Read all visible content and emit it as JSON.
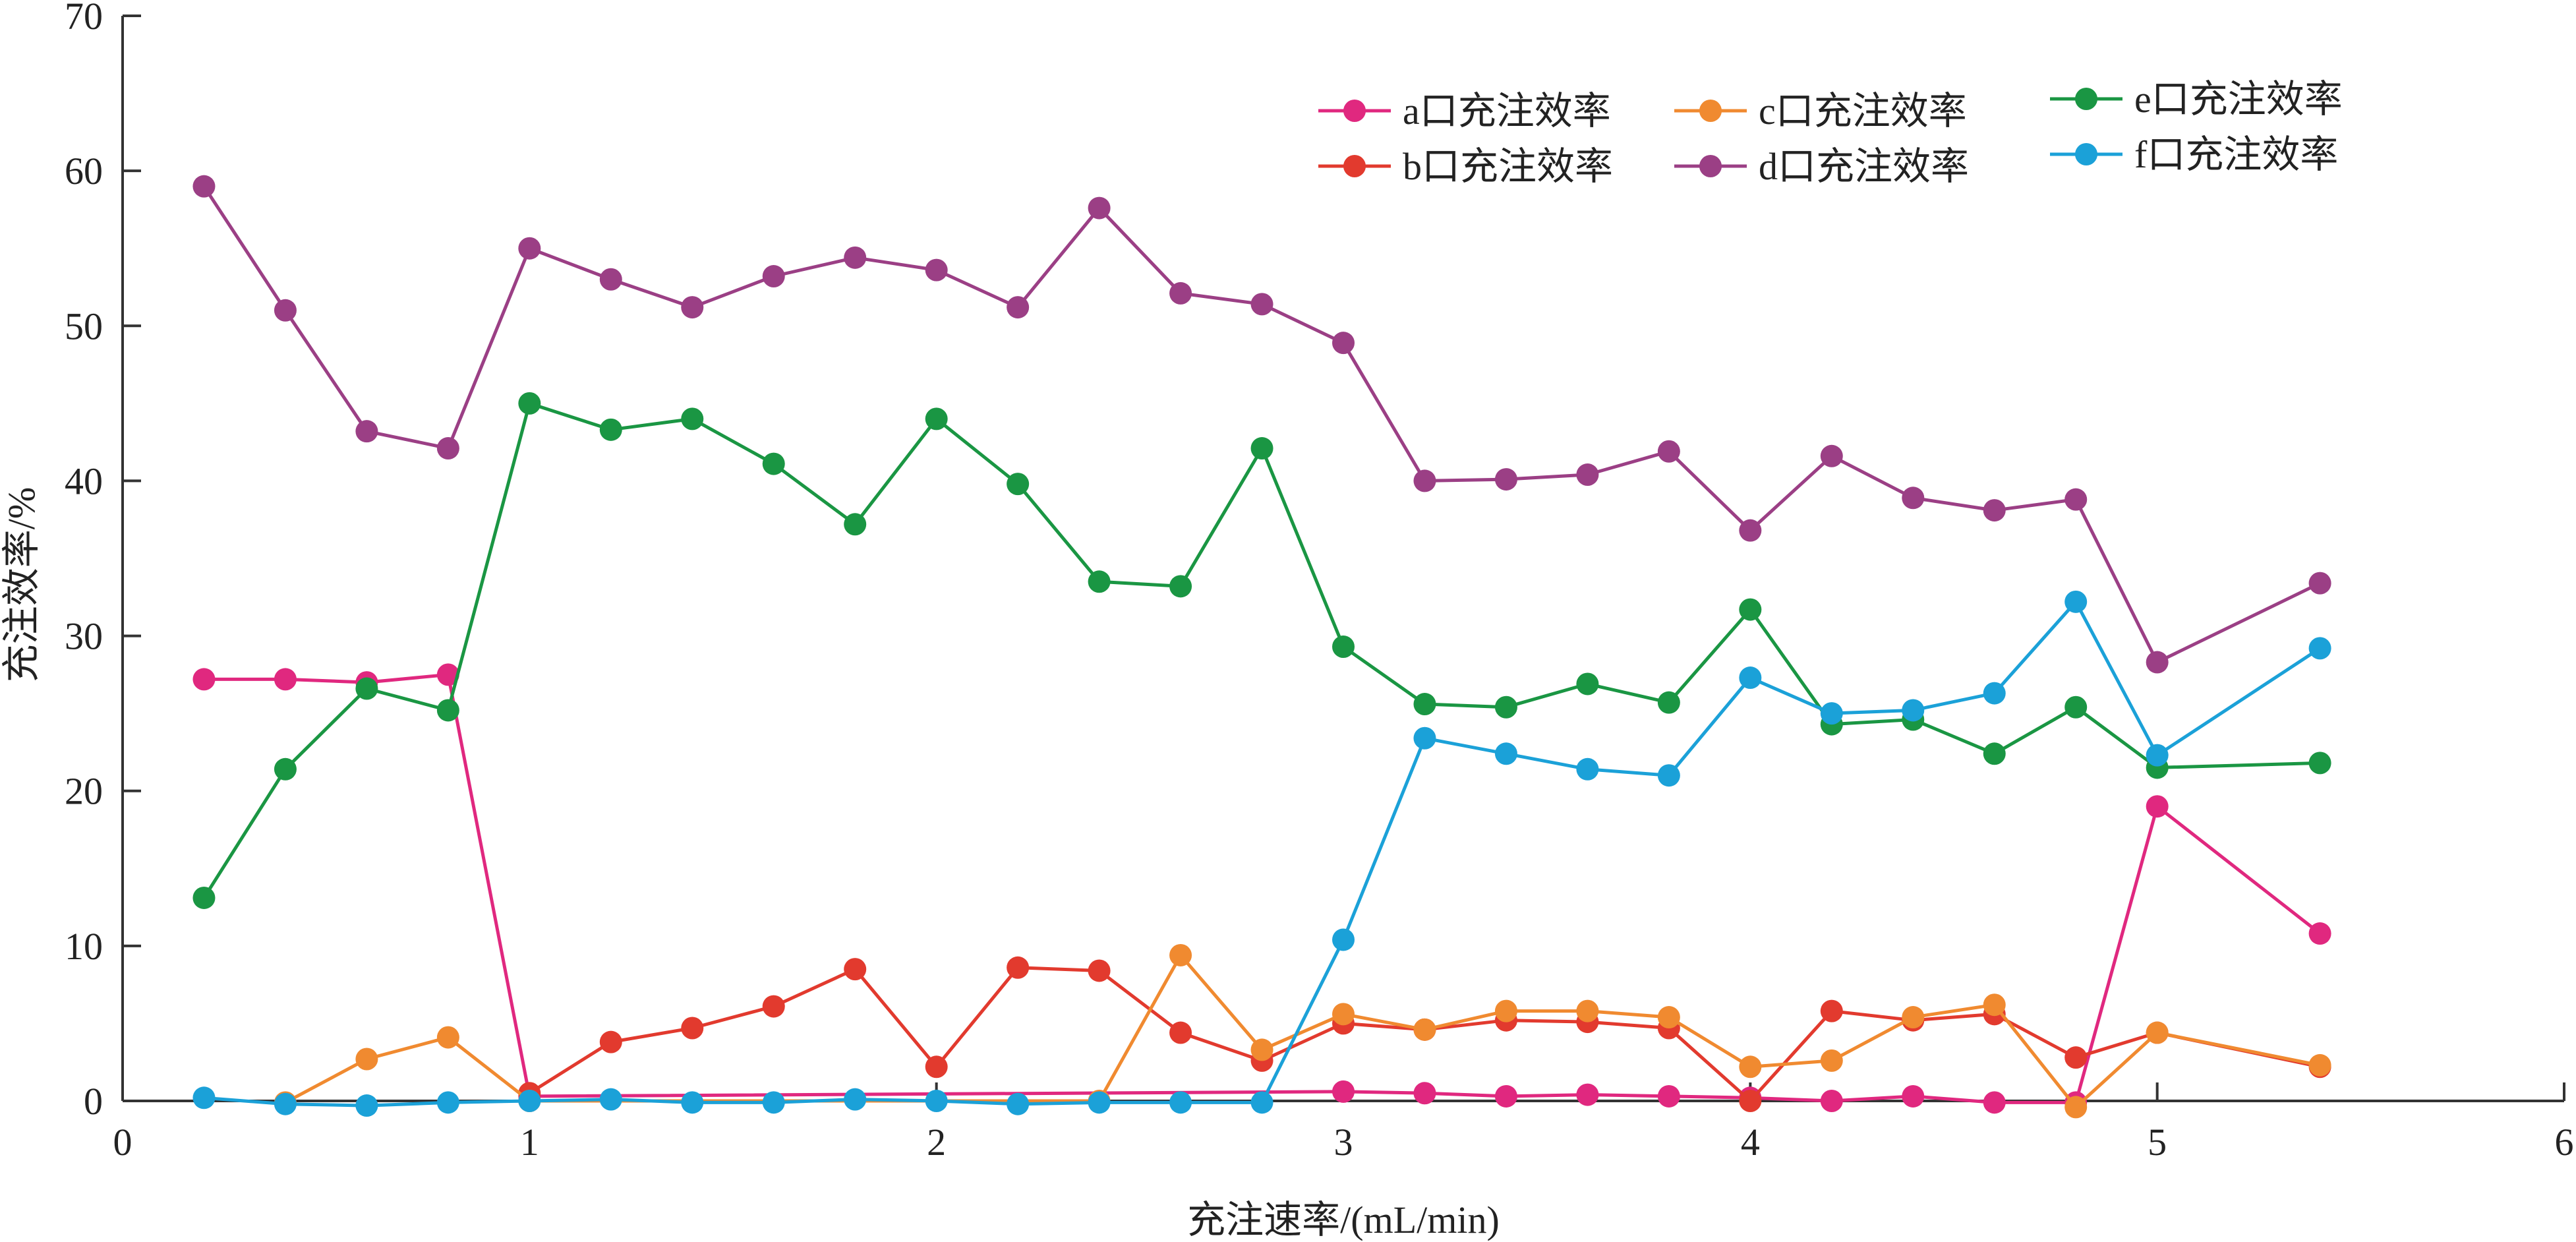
{
  "chart_data": {
    "type": "line",
    "xlabel": "充注速率/(mL/min)",
    "ylabel": "充注效率/%",
    "xlim": [
      0,
      6
    ],
    "ylim": [
      0,
      70
    ],
    "x_ticks": [
      "0",
      "1",
      "2",
      "3",
      "4",
      "5",
      "6"
    ],
    "y_ticks": [
      "0",
      "10",
      "20",
      "30",
      "40",
      "50",
      "60",
      "70"
    ],
    "grid": false,
    "legend_position": "top-right",
    "series": [
      {
        "name": "a口充注效率",
        "color": "#E0287F",
        "points": [
          [
            0.2,
            27.2
          ],
          [
            0.4,
            27.2
          ],
          [
            0.6,
            27.0
          ],
          [
            0.8,
            27.5
          ],
          [
            1.0,
            0.3
          ],
          [
            3.0,
            0.6
          ],
          [
            3.2,
            0.5
          ],
          [
            3.4,
            0.3
          ],
          [
            3.6,
            0.4
          ],
          [
            3.8,
            0.3
          ],
          [
            4.0,
            0.2
          ],
          [
            4.2,
            0.0
          ],
          [
            4.4,
            0.3
          ],
          [
            4.6,
            -0.1
          ],
          [
            4.8,
            -0.1
          ],
          [
            5.0,
            19.0
          ],
          [
            5.4,
            10.8
          ]
        ]
      },
      {
        "name": "b口充注效率",
        "color": "#E23A2E",
        "points": [
          [
            1.0,
            0.5
          ],
          [
            1.2,
            3.8
          ],
          [
            1.4,
            4.7
          ],
          [
            1.6,
            6.1
          ],
          [
            1.8,
            8.5
          ],
          [
            2.0,
            2.2
          ],
          [
            2.2,
            8.6
          ],
          [
            2.4,
            8.4
          ],
          [
            2.6,
            4.4
          ],
          [
            2.8,
            2.6
          ],
          [
            3.0,
            5.0
          ],
          [
            3.2,
            4.6
          ],
          [
            3.4,
            5.2
          ],
          [
            3.6,
            5.1
          ],
          [
            3.8,
            4.7
          ],
          [
            4.0,
            0.0
          ],
          [
            4.2,
            5.8
          ],
          [
            4.4,
            5.2
          ],
          [
            4.6,
            5.6
          ],
          [
            4.8,
            2.8
          ],
          [
            5.0,
            4.4
          ],
          [
            5.4,
            2.2
          ]
        ]
      },
      {
        "name": "c口充注效率",
        "color": "#F08A30",
        "points": [
          [
            0.4,
            -0.1
          ],
          [
            0.6,
            2.7
          ],
          [
            0.8,
            4.1
          ],
          [
            1.0,
            0.0
          ],
          [
            2.4,
            0.0
          ],
          [
            2.6,
            9.4
          ],
          [
            2.8,
            3.3
          ],
          [
            3.0,
            5.6
          ],
          [
            3.2,
            4.6
          ],
          [
            3.4,
            5.8
          ],
          [
            3.6,
            5.8
          ],
          [
            3.8,
            5.4
          ],
          [
            4.0,
            2.2
          ],
          [
            4.2,
            2.6
          ],
          [
            4.4,
            5.4
          ],
          [
            4.6,
            6.2
          ],
          [
            4.8,
            -0.4
          ],
          [
            5.0,
            4.4
          ],
          [
            5.4,
            2.3
          ]
        ]
      },
      {
        "name": "d口充注效率",
        "color": "#9B3F85",
        "points": [
          [
            0.2,
            59.0
          ],
          [
            0.4,
            51.0
          ],
          [
            0.6,
            43.2
          ],
          [
            0.8,
            42.1
          ],
          [
            1.0,
            55.0
          ],
          [
            1.2,
            53.0
          ],
          [
            1.4,
            51.2
          ],
          [
            1.6,
            53.2
          ],
          [
            1.8,
            54.4
          ],
          [
            2.0,
            53.6
          ],
          [
            2.2,
            51.2
          ],
          [
            2.4,
            57.6
          ],
          [
            2.6,
            52.1
          ],
          [
            2.8,
            51.4
          ],
          [
            3.0,
            48.9
          ],
          [
            3.2,
            40.0
          ],
          [
            3.4,
            40.1
          ],
          [
            3.6,
            40.4
          ],
          [
            3.8,
            41.9
          ],
          [
            4.0,
            36.8
          ],
          [
            4.2,
            41.6
          ],
          [
            4.4,
            38.9
          ],
          [
            4.6,
            38.1
          ],
          [
            4.8,
            38.8
          ],
          [
            5.0,
            28.3
          ],
          [
            5.4,
            33.4
          ]
        ]
      },
      {
        "name": "e口充注效率",
        "color": "#1A9643",
        "points": [
          [
            0.2,
            13.1
          ],
          [
            0.4,
            21.4
          ],
          [
            0.6,
            26.6
          ],
          [
            0.8,
            25.2
          ],
          [
            1.0,
            45.0
          ],
          [
            1.2,
            43.3
          ],
          [
            1.4,
            44.0
          ],
          [
            1.6,
            41.1
          ],
          [
            1.8,
            37.2
          ],
          [
            2.0,
            44.0
          ],
          [
            2.2,
            39.8
          ],
          [
            2.4,
            33.5
          ],
          [
            2.6,
            33.2
          ],
          [
            2.8,
            42.1
          ],
          [
            3.0,
            29.3
          ],
          [
            3.2,
            25.6
          ],
          [
            3.4,
            25.4
          ],
          [
            3.6,
            26.9
          ],
          [
            3.8,
            25.7
          ],
          [
            4.0,
            31.7
          ],
          [
            4.2,
            24.3
          ],
          [
            4.4,
            24.6
          ],
          [
            4.6,
            22.4
          ],
          [
            4.8,
            25.4
          ],
          [
            5.0,
            21.5
          ],
          [
            5.4,
            21.8
          ]
        ]
      },
      {
        "name": "f口充注效率",
        "color": "#1BA1D8",
        "points": [
          [
            0.2,
            0.2
          ],
          [
            0.4,
            -0.2
          ],
          [
            0.6,
            -0.3
          ],
          [
            0.8,
            -0.1
          ],
          [
            1.0,
            0.0
          ],
          [
            1.2,
            0.1
          ],
          [
            1.4,
            -0.1
          ],
          [
            1.6,
            -0.1
          ],
          [
            1.8,
            0.1
          ],
          [
            2.0,
            0.0
          ],
          [
            2.2,
            -0.2
          ],
          [
            2.4,
            -0.1
          ],
          [
            2.6,
            -0.1
          ],
          [
            2.8,
            -0.1
          ],
          [
            3.0,
            10.4
          ],
          [
            3.2,
            23.4
          ],
          [
            3.4,
            22.4
          ],
          [
            3.6,
            21.4
          ],
          [
            3.8,
            21.0
          ],
          [
            4.0,
            27.3
          ],
          [
            4.2,
            25.0
          ],
          [
            4.4,
            25.2
          ],
          [
            4.6,
            26.3
          ],
          [
            4.8,
            32.2
          ],
          [
            5.0,
            22.3
          ],
          [
            5.4,
            29.2
          ]
        ]
      }
    ]
  }
}
